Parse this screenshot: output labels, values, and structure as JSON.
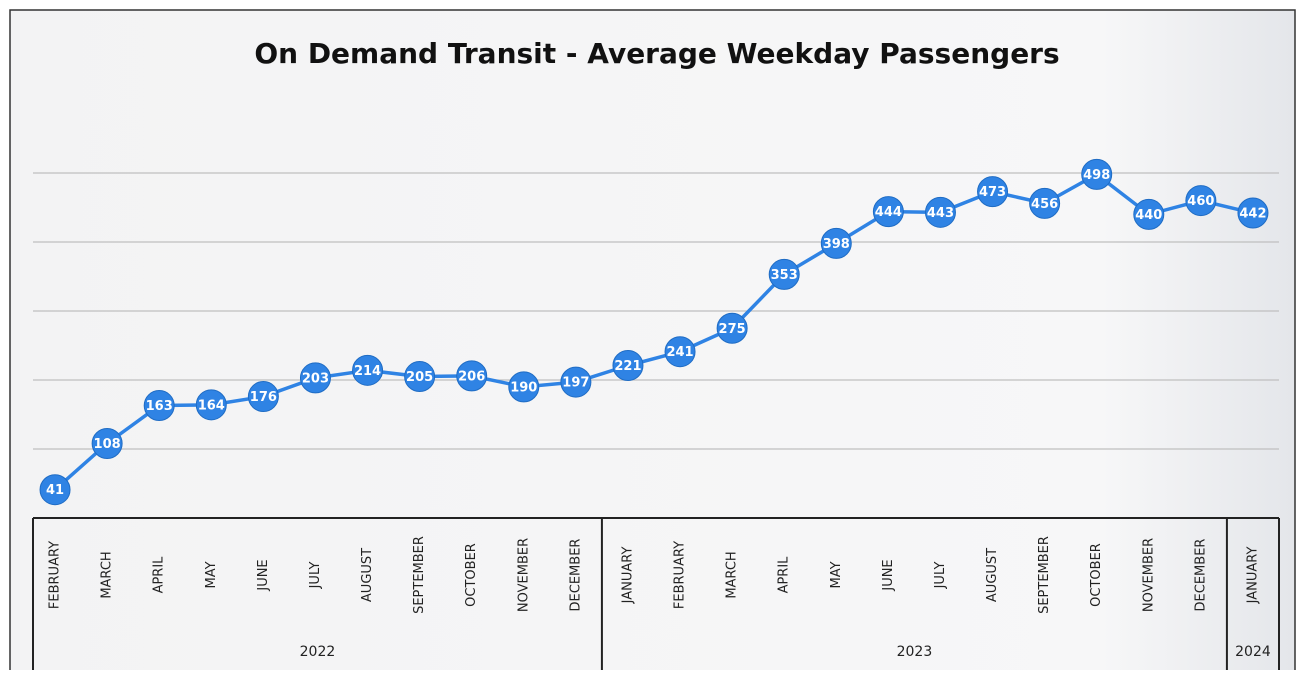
{
  "chart_data": {
    "type": "line",
    "title": "On Demand Transit - Average Weekday Passengers",
    "groups": [
      {
        "label": "2022",
        "categories": [
          "FEBRUARY",
          "MARCH",
          "APRIL",
          "MAY",
          "JUNE",
          "JULY",
          "AUGUST",
          "SEPTEMBER",
          "OCTOBER",
          "NOVEMBER",
          "DECEMBER"
        ]
      },
      {
        "label": "2023",
        "categories": [
          "JANUARY",
          "FEBRUARY",
          "MARCH",
          "APRIL",
          "MAY",
          "JUNE",
          "JULY",
          "AUGUST",
          "SEPTEMBER",
          "OCTOBER",
          "NOVEMBER",
          "DECEMBER"
        ]
      },
      {
        "label": "2024",
        "categories": [
          "JANUARY"
        ]
      }
    ],
    "values": [
      41,
      108,
      163,
      164,
      176,
      203,
      214,
      205,
      206,
      190,
      197,
      221,
      241,
      275,
      353,
      398,
      444,
      443,
      473,
      456,
      498,
      440,
      460,
      442
    ],
    "color": "#2f83e4",
    "ylim": [
      0,
      700
    ],
    "yticks": [
      100,
      200,
      300,
      400,
      500
    ],
    "grid": true
  }
}
